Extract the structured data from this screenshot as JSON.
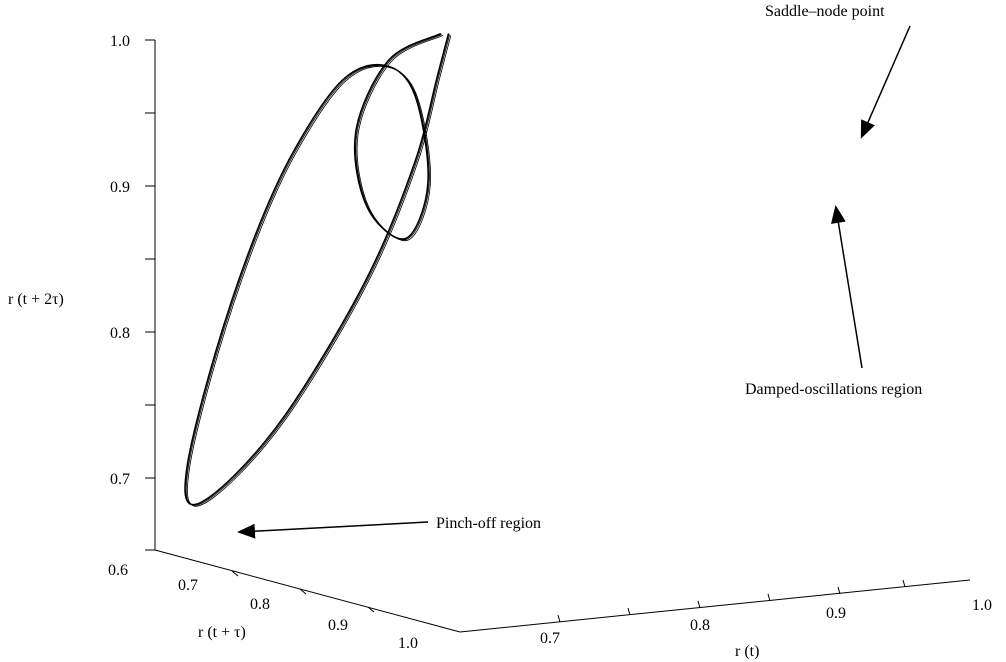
{
  "chart_data": {
    "type": "line3d",
    "title": "",
    "axes": {
      "x": {
        "label": "r (t)",
        "ticks": [
          "0.7",
          "0.8",
          "0.9",
          "1.0"
        ]
      },
      "y": {
        "label": "r (t + τ)",
        "ticks": [
          "0.7",
          "0.8",
          "0.9",
          "1.0"
        ]
      },
      "z": {
        "label": "r (t + 2τ)",
        "ticks": [
          "0.6",
          "0.7",
          "0.8",
          "0.9",
          "1.0"
        ]
      }
    },
    "series": [
      {
        "points": [
          [
            0.96,
            0.96,
            0.96
          ],
          [
            0.95,
            0.94,
            0.93
          ],
          [
            0.93,
            0.9,
            0.87
          ],
          [
            0.88,
            0.83,
            0.79
          ],
          [
            0.8,
            0.72,
            0.7
          ],
          [
            0.72,
            0.66,
            0.65
          ],
          [
            0.66,
            0.62,
            0.63
          ],
          [
            0.64,
            0.64,
            0.66
          ],
          [
            0.66,
            0.7,
            0.74
          ],
          [
            0.7,
            0.76,
            0.82
          ],
          [
            0.74,
            0.82,
            0.88
          ],
          [
            0.8,
            0.88,
            0.93
          ],
          [
            0.86,
            0.92,
            0.94
          ],
          [
            0.9,
            0.95,
            0.92
          ],
          [
            0.92,
            0.96,
            0.86
          ],
          [
            0.9,
            0.92,
            0.82
          ],
          [
            0.86,
            0.86,
            0.84
          ],
          [
            0.85,
            0.84,
            0.89
          ],
          [
            0.89,
            0.88,
            0.94
          ],
          [
            0.95,
            0.95,
            0.96
          ]
        ]
      }
    ],
    "grid": false,
    "legend": "none",
    "annotations": [
      {
        "text": "Saddle–node point",
        "target": [
          0.96,
          0.96,
          0.96
        ]
      },
      {
        "text": "Damped-oscillations region",
        "target": [
          0.94,
          0.93,
          0.92
        ]
      },
      {
        "text": "Pinch-off region",
        "target": [
          0.66,
          0.62,
          0.63
        ]
      }
    ],
    "style": {
      "line_color": "#000000",
      "background": "#ffffff"
    }
  }
}
